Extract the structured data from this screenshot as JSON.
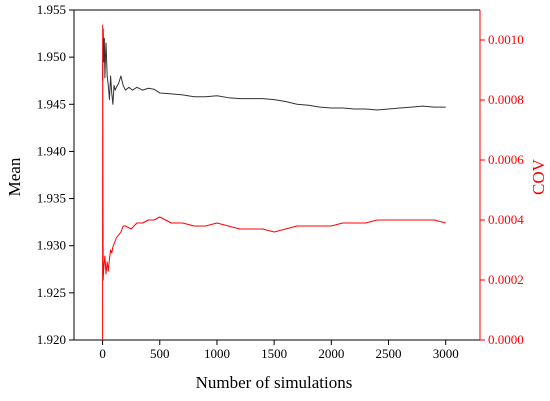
{
  "chart_data": {
    "type": "line",
    "title": "",
    "xlabel": "Number of simulations",
    "ylabel_left": "Mean",
    "ylabel_right": "COV",
    "xlim": [
      -250,
      3300
    ],
    "ylim_left": [
      1.92,
      1.955
    ],
    "ylim_right": [
      0.0,
      0.0011
    ],
    "x_ticks": [
      0,
      500,
      1000,
      1500,
      2000,
      2500,
      3000
    ],
    "x_tick_labels": [
      "0",
      "500",
      "1000",
      "1500",
      "2000",
      "2500",
      "3000"
    ],
    "y_left_ticks": [
      1.92,
      1.925,
      1.93,
      1.935,
      1.94,
      1.945,
      1.95,
      1.955
    ],
    "y_left_tick_labels": [
      "1.920",
      "1.925",
      "1.930",
      "1.935",
      "1.940",
      "1.945",
      "1.950",
      "1.955"
    ],
    "y_right_ticks": [
      0.0,
      0.0002,
      0.0004,
      0.0006,
      0.0008,
      0.001
    ],
    "y_right_tick_labels": [
      "0.0000",
      "0.0002",
      "0.0004",
      "0.0006",
      "0.0008",
      "0.0010"
    ],
    "grid": false,
    "legend": "none",
    "colors": {
      "mean": "#333333",
      "cov": "#ff0000",
      "axis_left": "#000000",
      "axis_right": "#ff0000"
    },
    "series": [
      {
        "axis": "left",
        "x": [
          0,
          5,
          10,
          15,
          20,
          25,
          30,
          40,
          50,
          60,
          70,
          80,
          90,
          100,
          110,
          120,
          140,
          160,
          180,
          200,
          230,
          260,
          300,
          350,
          400,
          450,
          500,
          600,
          700,
          800,
          900,
          1000,
          1100,
          1200,
          1300,
          1400,
          1500,
          1600,
          1700,
          1800,
          1900,
          2000,
          2100,
          2200,
          2300,
          2400,
          2500,
          2600,
          2700,
          2800,
          2900,
          3000
        ],
        "values": [
          1.9475,
          1.953,
          1.9495,
          1.952,
          1.9478,
          1.95,
          1.9515,
          1.948,
          1.947,
          1.9455,
          1.948,
          1.9462,
          1.945,
          1.947,
          1.9465,
          1.9468,
          1.9472,
          1.948,
          1.947,
          1.9465,
          1.9468,
          1.9465,
          1.9468,
          1.9465,
          1.9467,
          1.9466,
          1.9462,
          1.9461,
          1.946,
          1.9458,
          1.9458,
          1.9459,
          1.9457,
          1.9456,
          1.9456,
          1.9456,
          1.9455,
          1.9453,
          1.945,
          1.9449,
          1.9447,
          1.9446,
          1.9446,
          1.9445,
          1.9445,
          1.9444,
          1.9445,
          1.9446,
          1.9447,
          1.9448,
          1.9447,
          1.9447
        ]
      },
      {
        "axis": "right",
        "x": [
          0,
          1,
          5,
          10,
          20,
          30,
          40,
          50,
          60,
          70,
          80,
          90,
          100,
          120,
          140,
          160,
          180,
          200,
          250,
          300,
          350,
          400,
          450,
          500,
          550,
          600,
          700,
          800,
          900,
          1000,
          1100,
          1200,
          1300,
          1400,
          1500,
          1600,
          1700,
          1800,
          1900,
          2000,
          2100,
          2200,
          2300,
          2400,
          2500,
          2600,
          2700,
          2800,
          2900,
          3000
        ],
        "values": [
          0.0,
          0.00105,
          0.0002,
          0.00024,
          0.00028,
          0.00022,
          0.00026,
          0.00023,
          0.00027,
          0.0003,
          0.00029,
          0.00031,
          0.00032,
          0.00034,
          0.00035,
          0.00036,
          0.00038,
          0.00038,
          0.00037,
          0.00039,
          0.00039,
          0.0004,
          0.0004,
          0.00041,
          0.0004,
          0.00039,
          0.00039,
          0.00038,
          0.00038,
          0.00039,
          0.00038,
          0.00037,
          0.00037,
          0.00037,
          0.00036,
          0.00037,
          0.00038,
          0.00038,
          0.00038,
          0.00038,
          0.00039,
          0.00039,
          0.00039,
          0.0004,
          0.0004,
          0.0004,
          0.0004,
          0.0004,
          0.0004,
          0.00039
        ]
      }
    ]
  }
}
